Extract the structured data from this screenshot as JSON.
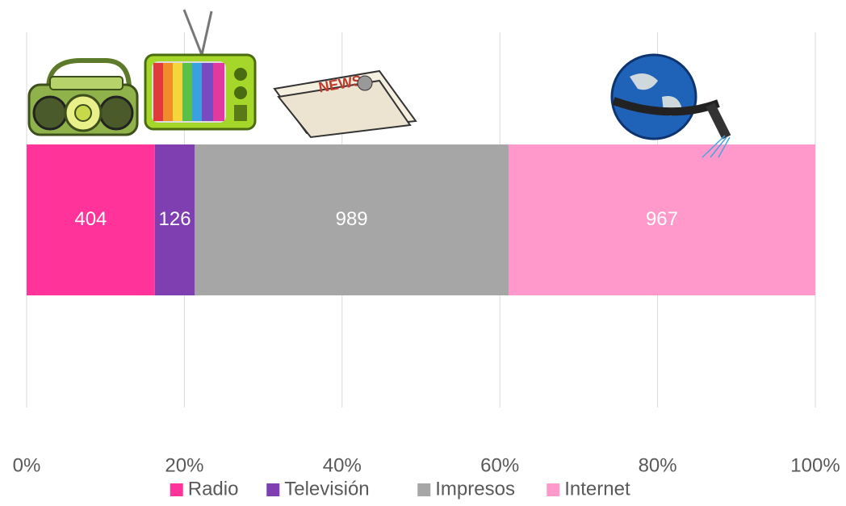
{
  "chart_data": {
    "type": "bar100h",
    "series": [
      {
        "name": "Radio",
        "color": "#ff3399",
        "values": [
          404
        ]
      },
      {
        "name": "Televisión",
        "color": "#7f3fb0",
        "values": [
          126
        ]
      },
      {
        "name": "Impresos",
        "color": "#a6a6a6",
        "values": [
          989
        ]
      },
      {
        "name": "Internet",
        "color": "#ff99cc",
        "values": [
          967
        ]
      }
    ],
    "xlim": [
      0,
      100
    ],
    "xticks": [
      {
        "value": 0,
        "label": "0%"
      },
      {
        "value": 20,
        "label": "20%"
      },
      {
        "value": 40,
        "label": "40%"
      },
      {
        "value": 60,
        "label": "60%"
      },
      {
        "value": 80,
        "label": "80%"
      },
      {
        "value": 100,
        "label": "100%"
      }
    ],
    "grid": true,
    "legend": "bottom"
  }
}
